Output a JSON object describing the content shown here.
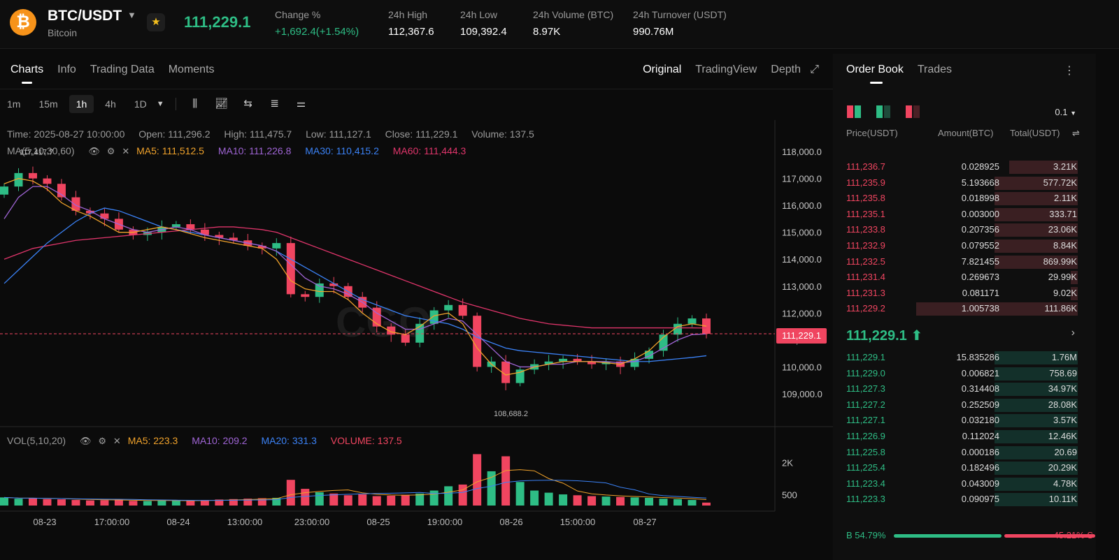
{
  "header": {
    "coin_symbol": "₿",
    "pair": "BTC/USDT",
    "coin_name": "Bitcoin",
    "last_price": "111,229.1",
    "stats": [
      {
        "label": "Change %",
        "value": "+1,692.4(+1.54%)",
        "up": true
      },
      {
        "label": "24h High",
        "value": "112,367.6"
      },
      {
        "label": "24h Low",
        "value": "109,392.4"
      },
      {
        "label": "24h Volume (BTC)",
        "value": "8.97K"
      },
      {
        "label": "24h Turnover (USDT)",
        "value": "990.76M"
      }
    ]
  },
  "chart_panel": {
    "tabs": [
      "Charts",
      "Info",
      "Trading Data",
      "Moments"
    ],
    "active_tab": "Charts",
    "views": [
      "Original",
      "TradingView",
      "Depth"
    ],
    "active_view": "Original",
    "intervals": [
      "1m",
      "15m",
      "1h",
      "4h",
      "1D"
    ],
    "active_interval": "1h",
    "info": {
      "time": "Time: 2025-08-27 10:00:00",
      "open": "Open: 111,296.2",
      "high": "High: 111,475.7",
      "low": "Low: 111,127.1",
      "close": "Close: 111,229.1",
      "volume": "Volume: 137.5"
    },
    "ma_legend": {
      "label": "MA(5,10,30,60)",
      "ma5": "MA5: 111,512.5",
      "ma10": "MA10: 111,226.8",
      "ma30": "MA30: 110,415.2",
      "ma60": "MA60: 111,444.3"
    },
    "vol_legend": {
      "label": "VOL(5,10,20)",
      "ma5": "MA5: 223.3",
      "ma10": "MA10: 209.2",
      "ma20": "MA20: 331.3",
      "volume": "VOLUME: 137.5"
    },
    "current_price_tag": "111,229.1",
    "high_marker": "117,417.7",
    "low_marker": "108,688.2",
    "watermark": "CGO"
  },
  "chart_data": {
    "type": "candlestick",
    "y_ticks": [
      "118,000.0",
      "117,000.0",
      "116,000.0",
      "115,000.0",
      "114,000.0",
      "113,000.0",
      "112,000.0",
      "111,000.0",
      "110,000.0",
      "109,000.0"
    ],
    "ylim": [
      108300,
      118400
    ],
    "x_labels": [
      "08-23",
      "17:00:00",
      "08-24",
      "13:00:00",
      "23:00:00",
      "08-25",
      "19:00:00",
      "08-26",
      "15:00:00",
      "08-27"
    ],
    "volume_ticks": [
      "2K",
      "500"
    ],
    "close_path": [
      116700,
      117200,
      117000,
      116800,
      116300,
      115800,
      115700,
      115500,
      115100,
      114900,
      115000,
      115200,
      115300,
      115100,
      114900,
      114800,
      114700,
      114500,
      114400,
      114600,
      112700,
      112600,
      113100,
      113000,
      112600,
      112200,
      111500,
      111200,
      110900,
      111600,
      112100,
      112300,
      111900,
      110000,
      110200,
      109400,
      109900,
      110100,
      110200,
      110300,
      110200,
      110100,
      110200,
      110000,
      110300,
      110600,
      111200,
      111600,
      111800,
      111229
    ],
    "ma5": [
      116800,
      117000,
      116900,
      116600,
      116100,
      115800,
      115600,
      115300,
      115000,
      115000,
      115100,
      115200,
      115100,
      114950,
      114800,
      114700,
      114600,
      114500,
      114400,
      114000,
      113200,
      112900,
      112800,
      112800,
      112500,
      112000,
      111600,
      111300,
      111200,
      111500,
      111900,
      112000,
      111600,
      110700,
      110100,
      109700,
      109800,
      110000,
      110100,
      110200,
      110200,
      110200,
      110150,
      110100,
      110300,
      110600,
      111100,
      111500,
      111600,
      111512
    ],
    "ma10": [
      115500,
      116300,
      116700,
      116700,
      116400,
      116000,
      115800,
      115500,
      115300,
      115100,
      115000,
      115100,
      115200,
      115100,
      114900,
      114800,
      114700,
      114600,
      114500,
      114300,
      113800,
      113300,
      113000,
      112900,
      112700,
      112400,
      112000,
      111700,
      111400,
      111400,
      111600,
      111800,
      111700,
      111200,
      110700,
      110200,
      110000,
      110000,
      110100,
      110100,
      110200,
      110200,
      110200,
      110150,
      110200,
      110400,
      110700,
      111000,
      111200,
      111226
    ],
    "ma30": [
      113100,
      113600,
      114100,
      114600,
      115000,
      115400,
      115700,
      115900,
      115800,
      115600,
      115400,
      115200,
      115100,
      115000,
      114900,
      114800,
      114700,
      114600,
      114500,
      114300,
      114000,
      113700,
      113400,
      113100,
      112800,
      112500,
      112300,
      112100,
      111900,
      111800,
      111700,
      111600,
      111400,
      111100,
      110900,
      110700,
      110600,
      110550,
      110500,
      110450,
      110400,
      110350,
      110300,
      110250,
      110200,
      110200,
      110250,
      110300,
      110350,
      110415
    ],
    "ma60": [
      114000,
      114200,
      114400,
      114500,
      114600,
      114700,
      114750,
      114800,
      114850,
      114900,
      114950,
      115000,
      115050,
      115100,
      115150,
      115200,
      115200,
      115150,
      115100,
      115000,
      114800,
      114600,
      114400,
      114200,
      114000,
      113800,
      113600,
      113400,
      113200,
      113000,
      112800,
      112600,
      112400,
      112250,
      112100,
      111950,
      111800,
      111700,
      111600,
      111550,
      111500,
      111450,
      111450,
      111450,
      111450,
      111450,
      111450,
      111450,
      111450,
      111444
    ],
    "volume": [
      380,
      320,
      340,
      300,
      290,
      260,
      240,
      250,
      270,
      220,
      210,
      230,
      240,
      220,
      260,
      280,
      300,
      320,
      340,
      360,
      1200,
      780,
      620,
      560,
      480,
      520,
      440,
      460,
      500,
      560,
      700,
      900,
      980,
      2400,
      1600,
      2300,
      1100,
      700,
      600,
      520,
      480,
      440,
      420,
      400,
      380,
      360,
      320,
      300,
      260,
      137.5
    ],
    "volume_ylim": [
      0,
      3000
    ]
  },
  "orderbook": {
    "tabs": [
      "Order Book",
      "Trades"
    ],
    "active_tab": "Order Book",
    "precision": "0.1",
    "headers": {
      "price": "Price(USDT)",
      "amount": "Amount(BTC)",
      "total": "Total(USDT)"
    },
    "asks": [
      {
        "price": "111,236.7",
        "amount": "0.028925",
        "total": "3.21K",
        "depth": 0.28
      },
      {
        "price": "111,235.9",
        "amount": "5.193668",
        "total": "577.72K",
        "depth": 0.34
      },
      {
        "price": "111,235.8",
        "amount": "0.018998",
        "total": "2.11K",
        "depth": 0.34
      },
      {
        "price": "111,235.1",
        "amount": "0.003000",
        "total": "333.71",
        "depth": 0.34
      },
      {
        "price": "111,233.8",
        "amount": "0.207356",
        "total": "23.06K",
        "depth": 0.34
      },
      {
        "price": "111,232.9",
        "amount": "0.079552",
        "total": "8.84K",
        "depth": 0.34
      },
      {
        "price": "111,232.5",
        "amount": "7.821455",
        "total": "869.99K",
        "depth": 0.34
      },
      {
        "price": "111,231.4",
        "amount": "0.269673",
        "total": "29.99K",
        "depth": 0.03
      },
      {
        "price": "111,231.3",
        "amount": "0.081171",
        "total": "9.02K",
        "depth": 0.03
      },
      {
        "price": "111,229.2",
        "amount": "1.005738",
        "total": "111.86K",
        "depth": 0.66
      }
    ],
    "mid_price": "111,229.1",
    "bids": [
      {
        "price": "111,229.1",
        "amount": "15.835286",
        "total": "1.76M",
        "depth": 0.34
      },
      {
        "price": "111,229.0",
        "amount": "0.006821",
        "total": "758.69",
        "depth": 0.34
      },
      {
        "price": "111,227.3",
        "amount": "0.314408",
        "total": "34.97K",
        "depth": 0.34
      },
      {
        "price": "111,227.2",
        "amount": "0.252509",
        "total": "28.08K",
        "depth": 0.34
      },
      {
        "price": "111,227.1",
        "amount": "0.032180",
        "total": "3.57K",
        "depth": 0.34
      },
      {
        "price": "111,226.9",
        "amount": "0.112024",
        "total": "12.46K",
        "depth": 0.34
      },
      {
        "price": "111,225.8",
        "amount": "0.000186",
        "total": "20.69",
        "depth": 0.34
      },
      {
        "price": "111,225.4",
        "amount": "0.182496",
        "total": "20.29K",
        "depth": 0.34
      },
      {
        "price": "111,223.4",
        "amount": "0.043009",
        "total": "4.78K",
        "depth": 0.34
      },
      {
        "price": "111,223.3",
        "amount": "0.090975",
        "total": "10.11K",
        "depth": 0.34
      }
    ],
    "buy_ratio": "B 54.79%",
    "sell_ratio": "45.21% S",
    "buy_fraction": 0.5479
  },
  "colors": {
    "up": "#2ebd85",
    "down": "#f04560",
    "ma5": "#f0a22b",
    "ma10": "#a065d6",
    "ma30": "#3b82f6",
    "ma60": "#e0356b"
  }
}
